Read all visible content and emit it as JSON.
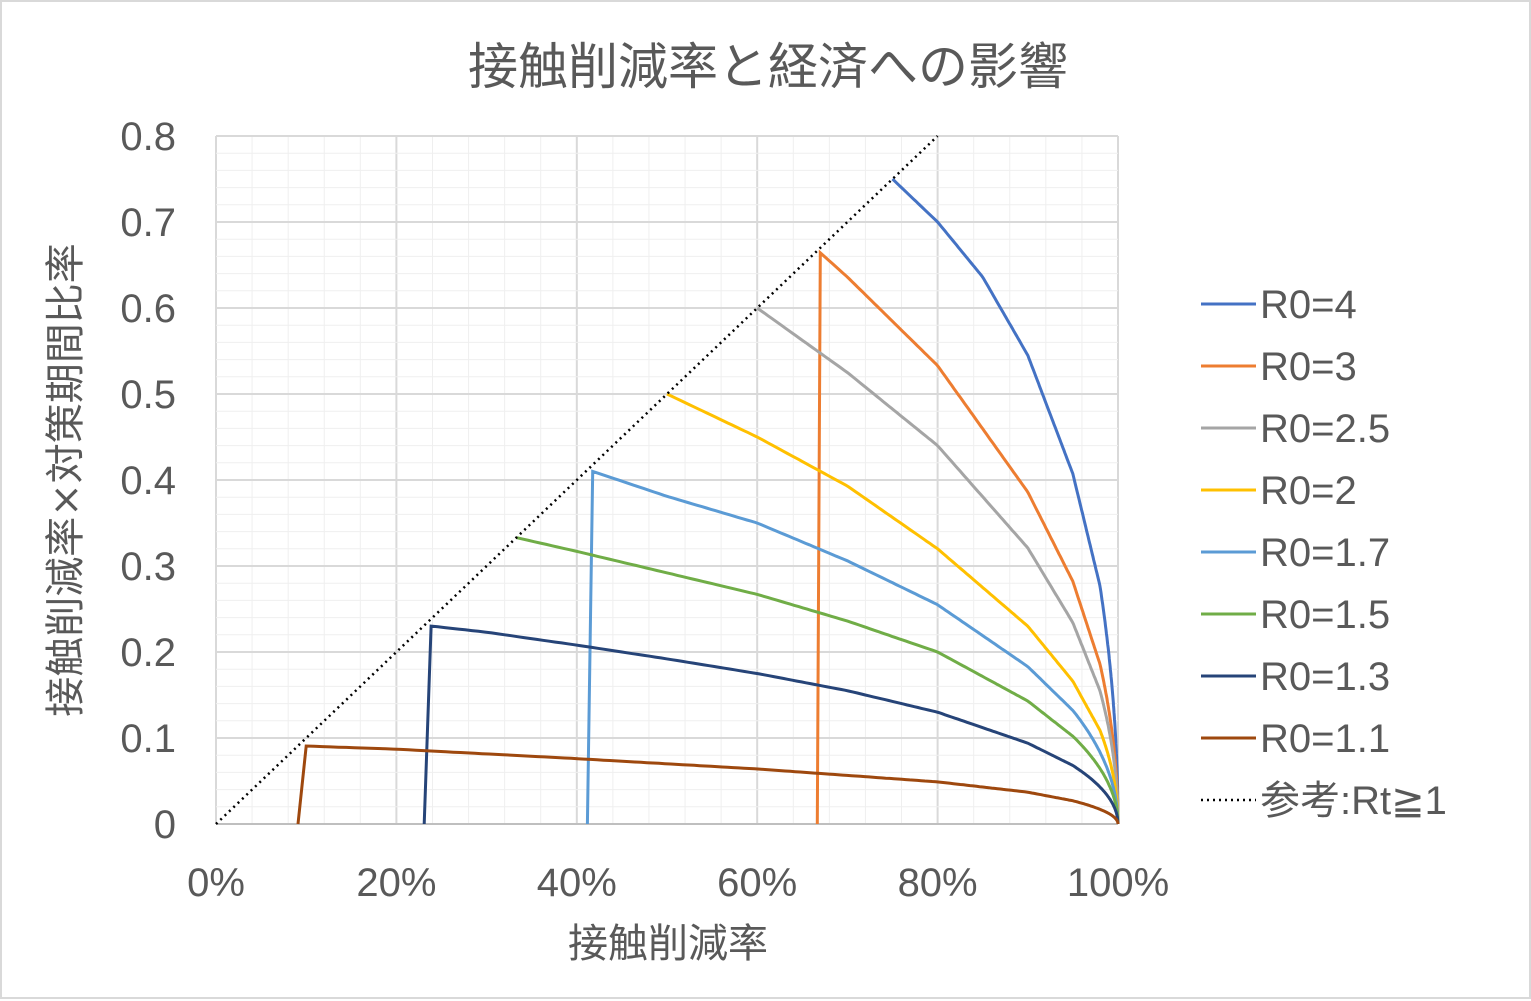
{
  "chart_data": {
    "type": "line",
    "title": "接触削減率と経済への影響",
    "xlabel": "接触削減率",
    "ylabel": "接触削減率×対策期間比率",
    "xlim": [
      0,
      1
    ],
    "ylim": [
      0,
      0.8
    ],
    "x_ticks": [
      "0%",
      "20%",
      "40%",
      "60%",
      "80%",
      "100%"
    ],
    "y_ticks": [
      "0",
      "0.1",
      "0.2",
      "0.3",
      "0.4",
      "0.5",
      "0.6",
      "0.7",
      "0.8"
    ],
    "grid": {
      "major": true,
      "minor": true
    },
    "legend_position": "right",
    "series": [
      {
        "name": "R0=4",
        "color": "#4472C4",
        "r0": 4,
        "points": [
          [
            0.75,
            0.75
          ],
          [
            0.8,
            0.7
          ],
          [
            0.85,
            0.636
          ],
          [
            0.9,
            0.545
          ],
          [
            0.95,
            0.407
          ],
          [
            0.98,
            0.277
          ],
          [
            1.0,
            0.0
          ]
        ]
      },
      {
        "name": "R0=3",
        "color": "#ED7D31",
        "r0": 3,
        "points": [
          [
            0.667,
            0.667
          ],
          [
            0.7,
            0.636
          ],
          [
            0.8,
            0.533
          ],
          [
            0.9,
            0.386
          ],
          [
            0.95,
            0.282
          ],
          [
            0.98,
            0.186
          ],
          [
            1.0,
            0.0
          ]
        ]
      },
      {
        "name": "R0=2.5",
        "color": "#A5A5A5",
        "r0": 2.5,
        "points": [
          [
            0.6,
            0.6
          ],
          [
            0.7,
            0.525
          ],
          [
            0.8,
            0.44
          ],
          [
            0.9,
            0.321
          ],
          [
            0.95,
            0.234
          ],
          [
            0.98,
            0.155
          ],
          [
            1.0,
            0.0
          ]
        ]
      },
      {
        "name": "R0=2",
        "color": "#FFC000",
        "r0": 2,
        "points": [
          [
            0.5,
            0.5
          ],
          [
            0.6,
            0.45
          ],
          [
            0.7,
            0.393
          ],
          [
            0.8,
            0.32
          ],
          [
            0.9,
            0.23
          ],
          [
            0.95,
            0.166
          ],
          [
            0.98,
            0.109
          ],
          [
            1.0,
            0.0
          ]
        ]
      },
      {
        "name": "R0=1.7",
        "color": "#5B9BD5",
        "r0": 1.7,
        "points": [
          [
            0.412,
            0.412
          ],
          [
            0.5,
            0.381
          ],
          [
            0.6,
            0.35
          ],
          [
            0.7,
            0.306
          ],
          [
            0.8,
            0.255
          ],
          [
            0.9,
            0.183
          ],
          [
            0.95,
            0.132
          ],
          [
            1.0,
            0.0
          ]
        ]
      },
      {
        "name": "R0=1.5",
        "color": "#70AD47",
        "r0": 1.5,
        "points": [
          [
            0.333,
            0.333
          ],
          [
            0.4,
            0.317
          ],
          [
            0.5,
            0.292
          ],
          [
            0.6,
            0.267
          ],
          [
            0.7,
            0.236
          ],
          [
            0.8,
            0.2
          ],
          [
            0.9,
            0.143
          ],
          [
            0.95,
            0.102
          ],
          [
            1.0,
            0.0
          ]
        ]
      },
      {
        "name": "R0=1.3",
        "color": "#264478",
        "r0": 1.3,
        "points": [
          [
            0.231,
            0.231
          ],
          [
            0.3,
            0.223
          ],
          [
            0.4,
            0.208
          ],
          [
            0.5,
            0.192
          ],
          [
            0.6,
            0.175
          ],
          [
            0.7,
            0.155
          ],
          [
            0.8,
            0.13
          ],
          [
            0.9,
            0.094
          ],
          [
            0.95,
            0.068
          ],
          [
            1.0,
            0.0
          ]
        ]
      },
      {
        "name": "R0=1.1",
        "color": "#9E480E",
        "r0": 1.1,
        "points": [
          [
            0.091,
            0.091
          ],
          [
            0.2,
            0.087
          ],
          [
            0.4,
            0.076
          ],
          [
            0.6,
            0.064
          ],
          [
            0.8,
            0.049
          ],
          [
            0.9,
            0.037
          ],
          [
            0.95,
            0.027
          ],
          [
            1.0,
            0.0
          ]
        ]
      },
      {
        "name": "参考:Rt≧1",
        "color": "#000000",
        "dashed": true,
        "points": [
          [
            0,
            0
          ],
          [
            0.8,
            0.8
          ]
        ]
      }
    ]
  }
}
